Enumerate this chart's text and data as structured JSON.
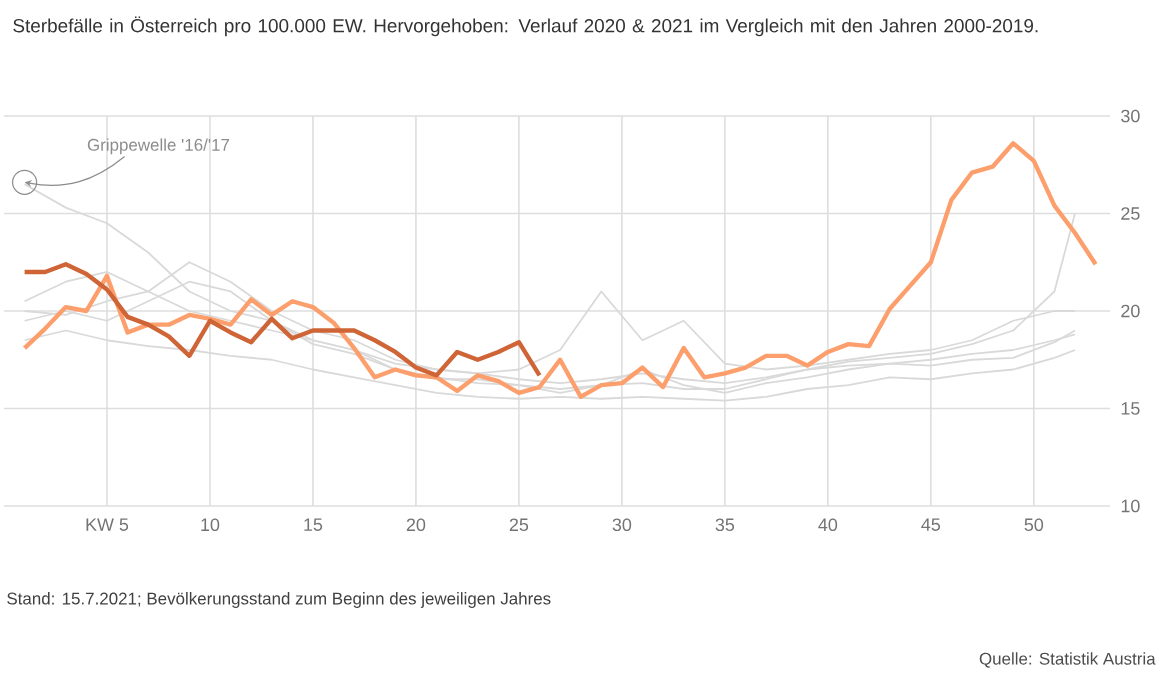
{
  "chart_data": {
    "type": "line",
    "title": "Sterbefälle in Österreich pro 100.000 EW. Hervorgehoben: Verlauf 2020 & 2021 im Vergleich mit den Jahren 2000-2019.",
    "x": [
      1,
      2,
      3,
      4,
      5,
      6,
      7,
      8,
      9,
      10,
      11,
      12,
      13,
      14,
      15,
      16,
      17,
      18,
      19,
      20,
      21,
      22,
      23,
      24,
      25,
      26,
      27,
      28,
      29,
      30,
      31,
      32,
      33,
      34,
      35,
      36,
      37,
      38,
      39,
      40,
      41,
      42,
      43,
      44,
      45,
      46,
      47,
      48,
      49,
      50,
      51,
      52,
      53
    ],
    "series": [
      {
        "color": "#d9d9d9",
        "x": [
          1,
          3,
          5,
          7,
          9,
          11,
          13,
          15,
          17,
          19,
          21,
          23,
          25,
          27,
          29,
          31,
          33,
          35,
          37,
          39,
          41,
          43,
          45,
          47,
          49,
          51,
          52
        ],
        "values": [
          26.5,
          25.3,
          24.5,
          23,
          21,
          20,
          19.5,
          18.5,
          18,
          17,
          16.5,
          16.5,
          16.2,
          16,
          16.2,
          16.3,
          16,
          16,
          16.5,
          17,
          17.2,
          17.3,
          17.5,
          17.8,
          18,
          18.5,
          18.8
        ]
      },
      {
        "color": "#d9d9d9",
        "x": [
          1,
          3,
          5,
          7,
          9,
          11,
          13,
          15,
          17,
          19,
          21,
          23,
          25,
          27,
          29,
          31,
          33,
          35,
          37,
          39,
          41,
          43,
          45,
          47,
          49,
          51,
          52
        ],
        "values": [
          20,
          19.8,
          20.5,
          21,
          22.5,
          21.5,
          20,
          19,
          18.5,
          17.5,
          17,
          16.8,
          16.5,
          16.3,
          16.5,
          16.8,
          16.5,
          16.3,
          16.6,
          17,
          17.4,
          17.6,
          17.8,
          18.3,
          19,
          21,
          25
        ]
      },
      {
        "color": "#d9d9d9",
        "x": [
          1,
          3,
          5,
          7,
          9,
          11,
          13,
          15,
          17,
          19,
          21,
          23,
          25,
          27,
          29,
          31,
          33,
          35,
          37,
          39,
          41,
          43,
          45,
          47,
          49,
          51,
          52
        ],
        "values": [
          20.5,
          21.5,
          22,
          21,
          20,
          19.5,
          19,
          18.5,
          18,
          17.3,
          17,
          16.8,
          17,
          18,
          21,
          18.5,
          19.5,
          17.3,
          17,
          17.2,
          17.5,
          17.8,
          18,
          18.5,
          19.5,
          20,
          20
        ]
      },
      {
        "color": "#d9d9d9",
        "x": [
          1,
          3,
          5,
          7,
          9,
          11,
          13,
          15,
          17,
          19,
          21,
          23,
          25,
          27,
          29,
          31,
          33,
          35,
          37,
          39,
          41,
          43,
          45,
          47,
          49,
          51,
          52
        ],
        "values": [
          18.5,
          19,
          18.5,
          18.2,
          18,
          17.7,
          17.5,
          17,
          16.6,
          16.2,
          15.8,
          15.6,
          15.5,
          15.6,
          15.5,
          15.6,
          15.5,
          15.4,
          15.6,
          16,
          16.2,
          16.6,
          16.5,
          16.8,
          17,
          17.6,
          18
        ]
      },
      {
        "color": "#d9d9d9",
        "x": [
          1,
          3,
          5,
          7,
          9,
          11,
          13,
          15,
          17,
          19,
          21,
          23,
          25,
          27,
          29,
          31,
          33,
          35,
          37,
          39,
          41,
          43,
          45,
          47,
          49,
          51,
          52
        ],
        "values": [
          19.5,
          20,
          19.5,
          20.5,
          21.5,
          21,
          19.5,
          18.3,
          17.8,
          17,
          16.6,
          16.3,
          16.2,
          15.8,
          16.2,
          17,
          16.2,
          15.8,
          16.3,
          16.6,
          17,
          17.3,
          17.2,
          17.5,
          17.6,
          18.4,
          19
        ]
      },
      {
        "color": "#fc9f6c",
        "values": [
          18.1,
          19.1,
          20.2,
          20.0,
          21.8,
          18.9,
          19.3,
          19.3,
          19.8,
          19.6,
          19.3,
          20.6,
          19.8,
          20.5,
          20.2,
          19.4,
          18.1,
          16.6,
          17.0,
          16.7,
          16.6,
          15.9,
          16.7,
          16.4,
          15.8,
          16.1,
          17.5,
          15.6,
          16.2,
          16.3,
          17.1,
          16.1,
          18.1,
          16.6,
          16.8,
          17.1,
          17.7,
          17.7,
          17.2,
          17.9,
          18.3,
          18.2,
          20.1,
          21.3,
          22.5,
          25.7,
          27.1,
          27.4,
          28.6,
          27.7,
          25.4,
          24.0,
          22.4
        ]
      },
      {
        "color": "#cf6436",
        "x": [
          1,
          2,
          3,
          4,
          5,
          6,
          7,
          8,
          9,
          10,
          11,
          12,
          13,
          14,
          15,
          16,
          17,
          18,
          19,
          20,
          21,
          22,
          23,
          24,
          25,
          26
        ],
        "values": [
          22.0,
          22.0,
          22.4,
          21.9,
          21.1,
          19.7,
          19.3,
          18.7,
          17.7,
          19.5,
          18.9,
          18.4,
          19.6,
          18.6,
          19.0,
          19.0,
          19.0,
          18.5,
          17.9,
          17.1,
          16.7,
          17.9,
          17.5,
          17.9,
          18.4,
          16.7
        ]
      }
    ],
    "xlim": [
      0,
      53.7
    ],
    "xticks": [
      {
        "value": 5,
        "label": "KW 5"
      },
      10,
      15,
      20,
      25,
      30,
      35,
      40,
      45,
      50
    ],
    "ylim": [
      10,
      30
    ],
    "yticks": [
      10,
      15,
      20,
      25,
      30
    ],
    "grid": true,
    "annotations": [
      {
        "text": "Grippewelle '16/'17",
        "x": 1,
        "y": 26.6
      },
      "Stand: 15.7.2021; Bevölkerungsstand zum Beginn des jeweiligen Jahres",
      "Quelle: Statistik Austria"
    ]
  }
}
